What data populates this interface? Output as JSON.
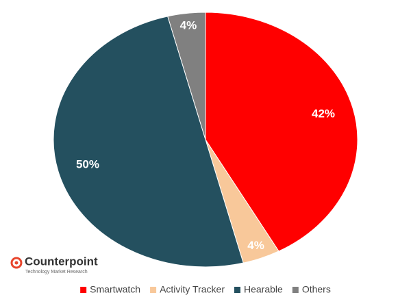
{
  "chart_data": {
    "type": "pie",
    "categories": [
      "Smartwatch",
      "Activity Tracker",
      "Hearable",
      "Others"
    ],
    "values": [
      42,
      4,
      50,
      4
    ],
    "value_labels": [
      "42%",
      "4%",
      "50%",
      "4%"
    ],
    "colors": [
      "#ff0000",
      "#f8c89a",
      "#24505f",
      "#808080"
    ],
    "legend": "bottom",
    "source_logo": {
      "name": "Counterpoint",
      "tagline": "Technology Market Research"
    }
  }
}
